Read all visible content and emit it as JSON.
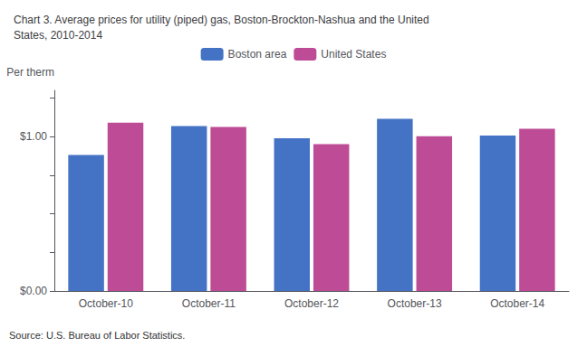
{
  "chart_data": {
    "type": "bar",
    "title": "Chart 3. Average prices for utility (piped) gas, Boston-Brockton-Nashua and the United\nStates, 2010-2014",
    "ylabel": "Per therm",
    "annotations": [
      "Source: U.S. Bureau of Labor Statistics."
    ],
    "categories": [
      "October-10",
      "October-11",
      "October-12",
      "October-13",
      "October-14"
    ],
    "series": [
      {
        "name": "Boston area",
        "color": "#4472C4",
        "values": [
          0.882,
          1.069,
          0.989,
          1.116,
          1.007
        ]
      },
      {
        "name": "United States",
        "color": "#BE4B96",
        "values": [
          1.09,
          1.063,
          0.951,
          1.003,
          1.051
        ]
      }
    ],
    "ylim": [
      0.0,
      1.3
    ],
    "yticks": [
      {
        "value": 0.0,
        "label": "$0.00"
      },
      {
        "value": 0.25,
        "label": ""
      },
      {
        "value": 0.5,
        "label": ""
      },
      {
        "value": 0.75,
        "label": ""
      },
      {
        "value": 1.0,
        "label": "$1.00"
      },
      {
        "value": 1.25,
        "label": ""
      }
    ],
    "grid": false,
    "legend": "top"
  }
}
